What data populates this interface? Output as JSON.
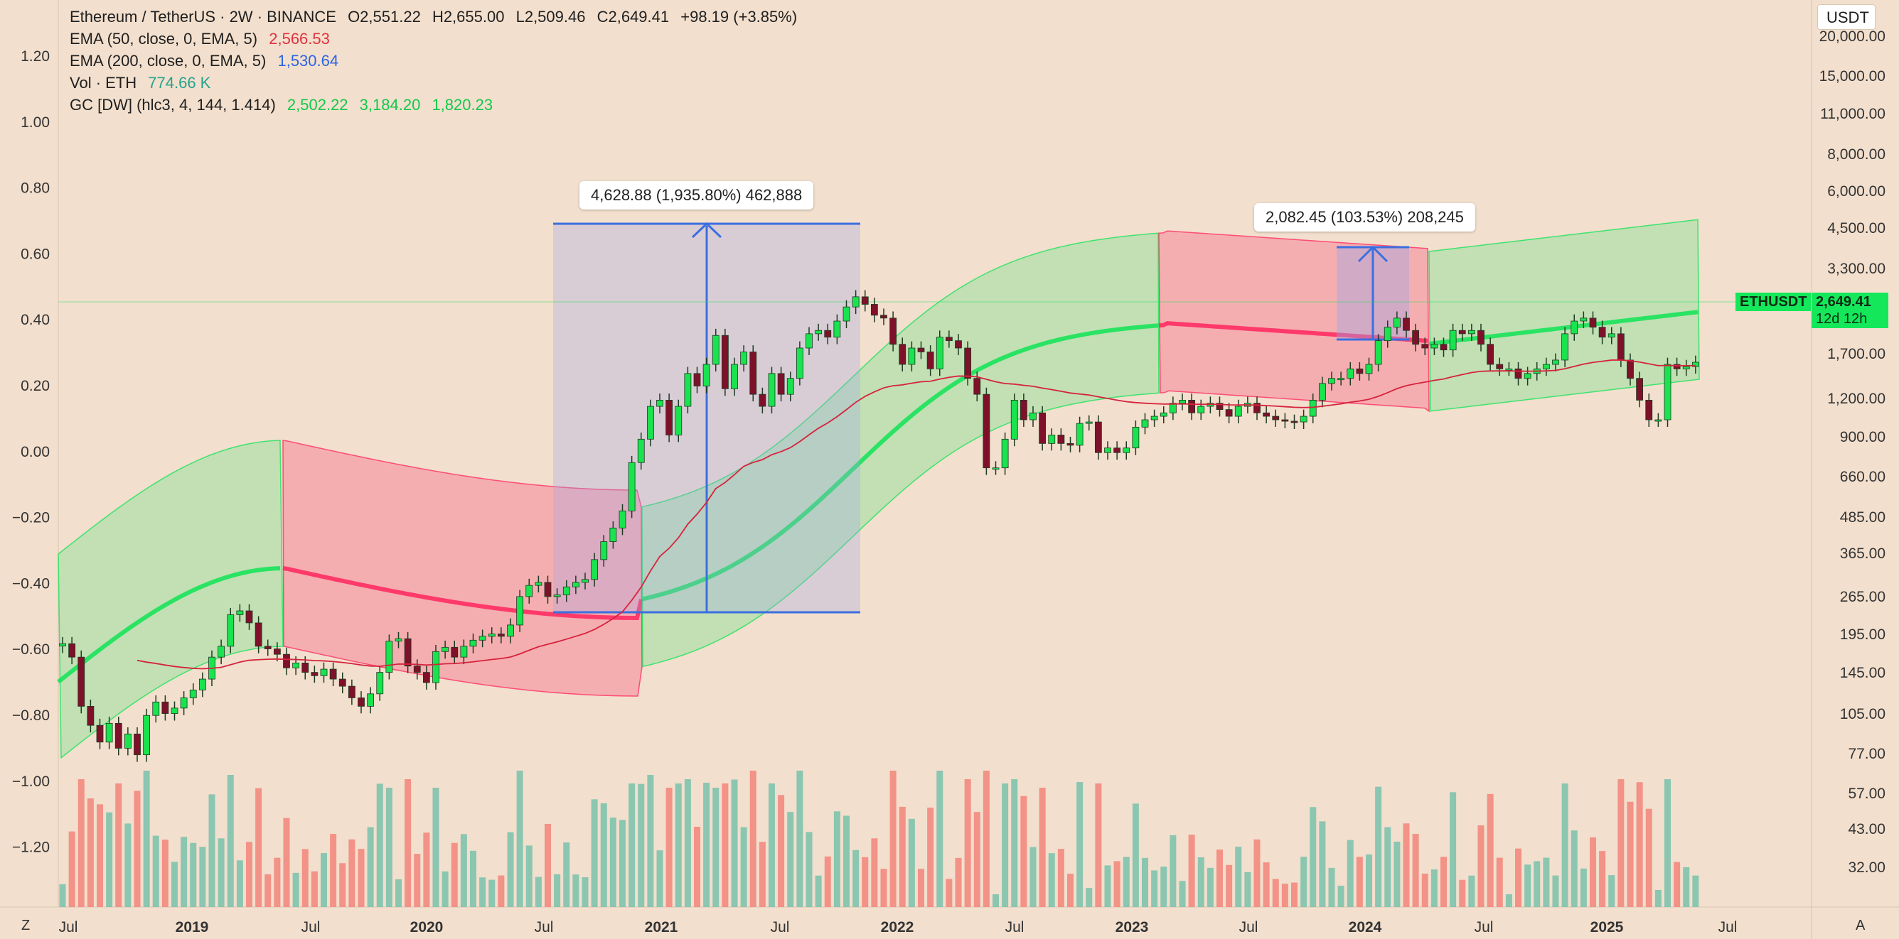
{
  "legend": {
    "symbol": "Ethereum / TetherUS · 2W · BINANCE",
    "open": "O2,551.22",
    "high": "H2,655.00",
    "low": "L2,509.46",
    "close": "C2,649.41",
    "change": "+98.19 (+3.85%)",
    "ema50_label": "EMA (50, close, 0, EMA, 5)",
    "ema50_value": "2,566.53",
    "ema200_label": "EMA (200, close, 0, EMA, 5)",
    "ema200_value": "1,530.64",
    "vol_label": "Vol · ETH",
    "vol_value": "774.66 K",
    "gc_label": "GC [DW] (hlc3, 4, 144, 1.414)",
    "gc_v1": "2,502.22",
    "gc_v2": "3,184.20",
    "gc_v3": "1,820.23"
  },
  "measurements": [
    {
      "label": "4,628.88 (1,935.80%) 462,888"
    },
    {
      "label": "2,082.45 (103.53%) 208,245"
    }
  ],
  "currency_button": "USDT",
  "price_tag": {
    "symbol": "ETHUSDT",
    "price": "2,649.41",
    "countdown": "12d 12h"
  },
  "bottom_left": "Z",
  "bottom_right": "A",
  "colors": {
    "background": "#f2dfcd",
    "bull_candle": "#19e34e",
    "bear_candle": "#7e1129",
    "green_band": "#19e35a",
    "red_band": "#ff2e63",
    "ema50": "#d6233d",
    "vol_up": "#7fc3ae",
    "vol_down": "#f38a80",
    "measure_line": "#3b6fe0"
  },
  "chart_data": {
    "type": "candlestick",
    "left_axis_ticks": [
      "1.20",
      "1.00",
      "0.80",
      "0.60",
      "0.40",
      "0.20",
      "0.00",
      "−0.20",
      "−0.40",
      "−0.60",
      "−0.80",
      "−1.00",
      "−1.20"
    ],
    "right_axis_ticks": [
      "20,000.00",
      "15,000.00",
      "11,000.00",
      "8,000.00",
      "6,000.00",
      "4,500.00",
      "3,300.00",
      "1,700.00",
      "1,200.00",
      "900.00",
      "660.00",
      "485.00",
      "365.00",
      "265.00",
      "195.00",
      "145.00",
      "105.00",
      "77.00",
      "57.00",
      "43.00",
      "32.00"
    ],
    "x_axis_labels": [
      "Jul",
      "2019",
      "Jul",
      "2020",
      "Jul",
      "2021",
      "Jul",
      "2022",
      "Jul",
      "2023",
      "Jul",
      "2024",
      "Jul",
      "2025",
      "Jul"
    ],
    "close_prices_approx": [
      225,
      200,
      130,
      110,
      95,
      112,
      90,
      102,
      85,
      120,
      135,
      122,
      128,
      140,
      150,
      165,
      200,
      220,
      290,
      300,
      270,
      220,
      215,
      205,
      182,
      190,
      175,
      170,
      180,
      165,
      155,
      140,
      130,
      145,
      175,
      230,
      235,
      185,
      175,
      160,
      210,
      218,
      200,
      220,
      232,
      240,
      245,
      240,
      265,
      340,
      375,
      385,
      340,
      345,
      370,
      385,
      395,
      470,
      550,
      620,
      720,
      1100,
      1350,
      1800,
      1900,
      1400,
      1800,
      2400,
      2150,
      2600,
      3350,
      2100,
      2600,
      2900,
      2000,
      1800,
      2400,
      2000,
      2300,
      3000,
      3400,
      3500,
      3300,
      3800,
      4300,
      4700,
      4400,
      4000,
      3900,
      3100,
      2600,
      3000,
      2900,
      2500,
      3300,
      3200,
      3000,
      2300,
      2000,
      1050,
      1050,
      1350,
      1900,
      1600,
      1700,
      1300,
      1400,
      1300,
      1280,
      1550,
      1570,
      1200,
      1250,
      1200,
      1250,
      1500,
      1600,
      1650,
      1700,
      1850,
      1900,
      1700,
      1800,
      1850,
      1750,
      1650,
      1800,
      1850,
      1700,
      1650,
      1600,
      1580,
      1570,
      1650,
      1900,
      2200,
      2300,
      2300,
      2500,
      2400,
      2600,
      3200,
      3600,
      3900,
      3500,
      3100,
      3000,
      3100,
      2950,
      3500,
      3400,
      3500,
      3100,
      2600,
      2500,
      2500,
      2300,
      2400,
      2500,
      2600,
      2700,
      3400,
      3800,
      3900,
      3600,
      3300,
      3400,
      2700,
      2300,
      1900,
      1600,
      1600,
      2600,
      2500,
      2551,
      2649
    ]
  }
}
